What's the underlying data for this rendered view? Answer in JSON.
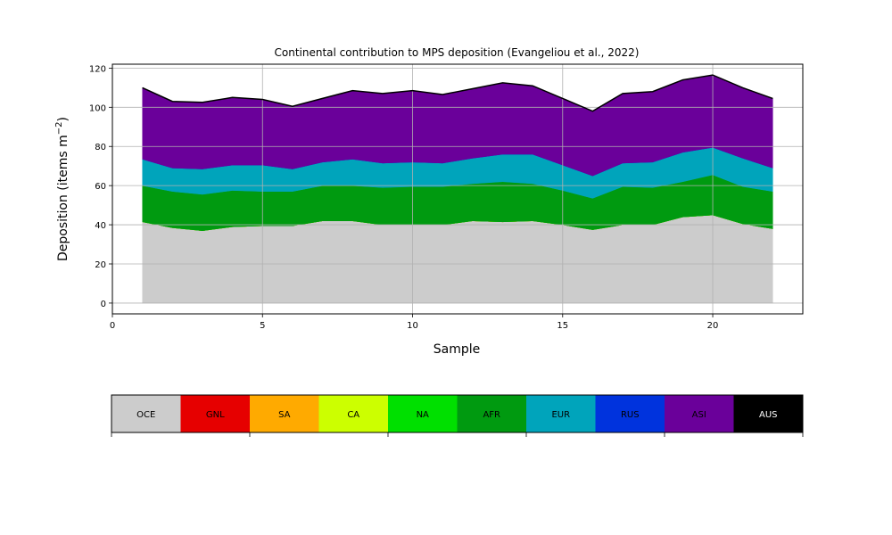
{
  "chart_data": {
    "type": "area",
    "stacked": true,
    "title": "Continental contribution to MPS deposition (Evangeliou et al., 2022)",
    "xlabel": "Sample",
    "ylabel": "Deposition (items m⁻²)",
    "xlim": [
      0,
      23
    ],
    "ylim": [
      -5.5,
      122
    ],
    "xticks": [
      0,
      5,
      10,
      15,
      20
    ],
    "yticks": [
      0,
      20,
      40,
      60,
      80,
      100,
      120
    ],
    "grid": true,
    "x": [
      1,
      2,
      3,
      4,
      5,
      6,
      7,
      8,
      9,
      10,
      11,
      12,
      13,
      14,
      15,
      16,
      17,
      18,
      19,
      20,
      21,
      22
    ],
    "series": [
      {
        "name": "OCE",
        "color": "#cccccc",
        "values": [
          41.5,
          38.5,
          37,
          39,
          39.5,
          39.5,
          42,
          42,
          40,
          40,
          40,
          42,
          41.5,
          42,
          40,
          37.5,
          40,
          40,
          44,
          45,
          40.5,
          38
        ]
      },
      {
        "name": "GNL",
        "color": "#e60000",
        "values": [
          0,
          0,
          0,
          0,
          0,
          0,
          0,
          0,
          0,
          0,
          0,
          0,
          0,
          0,
          0,
          0,
          0,
          0,
          0,
          0,
          0,
          0
        ]
      },
      {
        "name": "SA",
        "color": "#ffaa00",
        "values": [
          0,
          0,
          0,
          0,
          0,
          0,
          0,
          0,
          0,
          0,
          0,
          0,
          0,
          0,
          0,
          0,
          0,
          0,
          0,
          0,
          0,
          0
        ]
      },
      {
        "name": "CA",
        "color": "#ccff00",
        "values": [
          0,
          0,
          0,
          0,
          0,
          0,
          0,
          0,
          0,
          0,
          0,
          0,
          0,
          0,
          0,
          0,
          0,
          0,
          0,
          0,
          0,
          0
        ]
      },
      {
        "name": "NA",
        "color": "#00e000",
        "values": [
          0,
          0,
          0,
          0,
          0,
          0,
          0,
          0,
          0,
          0,
          0,
          0,
          0,
          0,
          0,
          0,
          0,
          0,
          0,
          0,
          0,
          0
        ]
      },
      {
        "name": "AFR",
        "color": "#009a10",
        "values": [
          18.5,
          18.5,
          18.5,
          18.5,
          17.5,
          17.5,
          18,
          18,
          19,
          19.5,
          19.5,
          19,
          20.5,
          19,
          17.5,
          16,
          19.5,
          19,
          18,
          20.5,
          19,
          19
        ]
      },
      {
        "name": "EUR",
        "color": "#00a4bb",
        "values": [
          13.5,
          12,
          13,
          13,
          13.5,
          11.5,
          12,
          13.5,
          12.5,
          12.5,
          12,
          13,
          14,
          15,
          13,
          11.5,
          12,
          13,
          15,
          14,
          14.5,
          12
        ]
      },
      {
        "name": "RUS",
        "color": "#0033dd",
        "values": [
          0,
          0,
          0,
          0,
          0,
          0,
          0,
          0,
          0,
          0,
          0,
          0,
          0,
          0,
          0,
          0,
          0,
          0,
          0,
          0,
          0,
          0
        ]
      },
      {
        "name": "ASI",
        "color": "#6a009a",
        "values": [
          36.5,
          34,
          34,
          34.5,
          33.5,
          32,
          32.5,
          35,
          35.5,
          36.5,
          35,
          35.5,
          36.5,
          35,
          34,
          33,
          35.5,
          36,
          37,
          37,
          36,
          35.5
        ]
      },
      {
        "name": "AUS",
        "color": "#000000",
        "values": [
          0,
          0,
          0,
          0,
          0,
          0,
          0,
          0,
          0,
          0,
          0,
          0,
          0,
          0,
          0,
          0,
          0,
          0,
          0,
          0,
          0,
          0
        ]
      }
    ],
    "colorbar": {
      "labels": [
        "OCE",
        "GNL",
        "SA",
        "CA",
        "NA",
        "AFR",
        "EUR",
        "RUS",
        "ASI",
        "AUS"
      ],
      "colors": [
        "#cccccc",
        "#e60000",
        "#ffaa00",
        "#ccff00",
        "#00e000",
        "#009a10",
        "#00a4bb",
        "#0033dd",
        "#6a009a",
        "#000000"
      ],
      "label_colors": [
        "#000000",
        "#000000",
        "#000000",
        "#000000",
        "#000000",
        "#000000",
        "#000000",
        "#000000",
        "#000000",
        "#ffffff"
      ],
      "tick_count": 6,
      "placement": "bottom"
    }
  }
}
